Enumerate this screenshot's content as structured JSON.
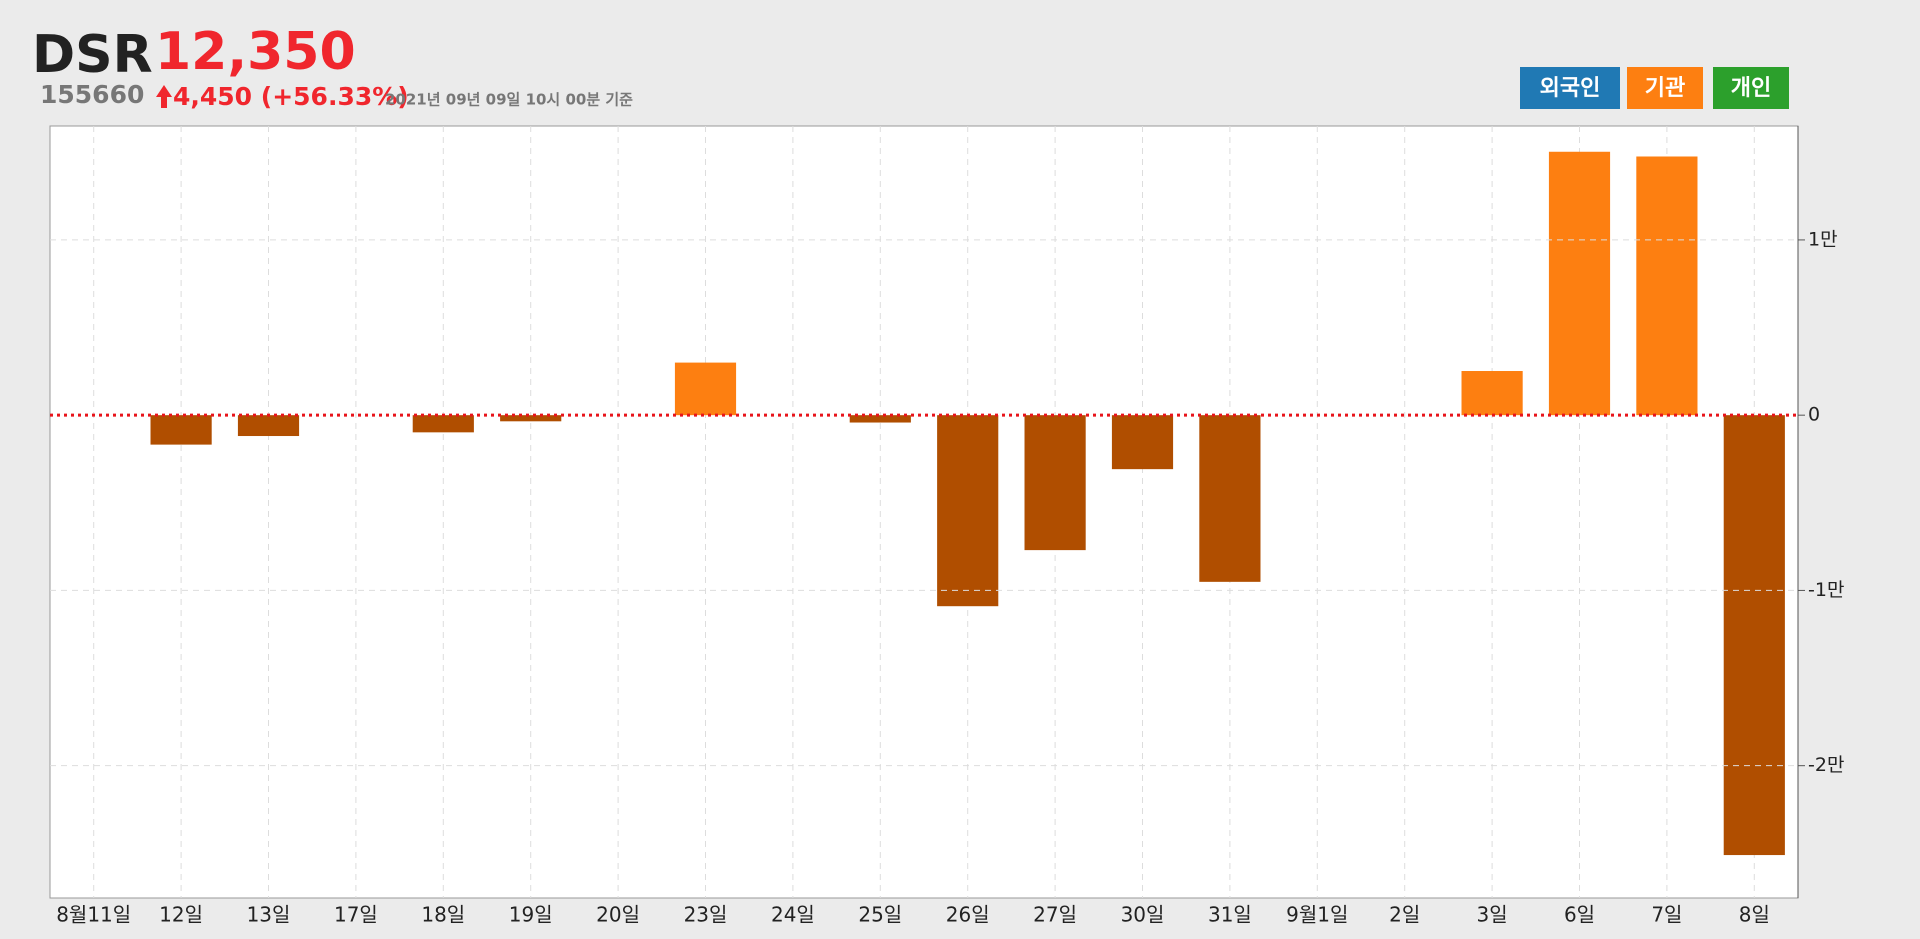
{
  "header": {
    "name": "DSR",
    "price": "12,350",
    "code": "155660",
    "change": "4,450 (+56.33%)",
    "timestamp": "2021년 09년 09일 10시 00분 기준"
  },
  "buttons": [
    {
      "label": "외국인",
      "color": "#2079b4"
    },
    {
      "label": "기관",
      "color": "#fd7f11"
    },
    {
      "label": "개인",
      "color": "#2ca02c"
    }
  ],
  "chart_data": {
    "type": "bar",
    "categories": [
      "8월11일",
      "12일",
      "13일",
      "17일",
      "18일",
      "19일",
      "20일",
      "23일",
      "24일",
      "25일",
      "26일",
      "27일",
      "30일",
      "31일",
      "9월1일",
      "2일",
      "3일",
      "6일",
      "7일",
      "8일"
    ],
    "values": [
      0,
      -1680,
      -1190,
      0,
      -980,
      -350,
      0,
      3000,
      0,
      -420,
      -10900,
      -7700,
      -3080,
      -9510,
      0,
      0,
      2520,
      15030,
      14760,
      -25100
    ],
    "color": "#fd7f11",
    "negative_color": "#b04e00",
    "ylim": [
      -27550,
      16500
    ],
    "yticks": [
      {
        "value": 10000,
        "label": "1만"
      },
      0,
      {
        "value": -10000,
        "label": "-1만"
      },
      {
        "value": -20000,
        "label": "-2만"
      }
    ],
    "grid": true
  }
}
